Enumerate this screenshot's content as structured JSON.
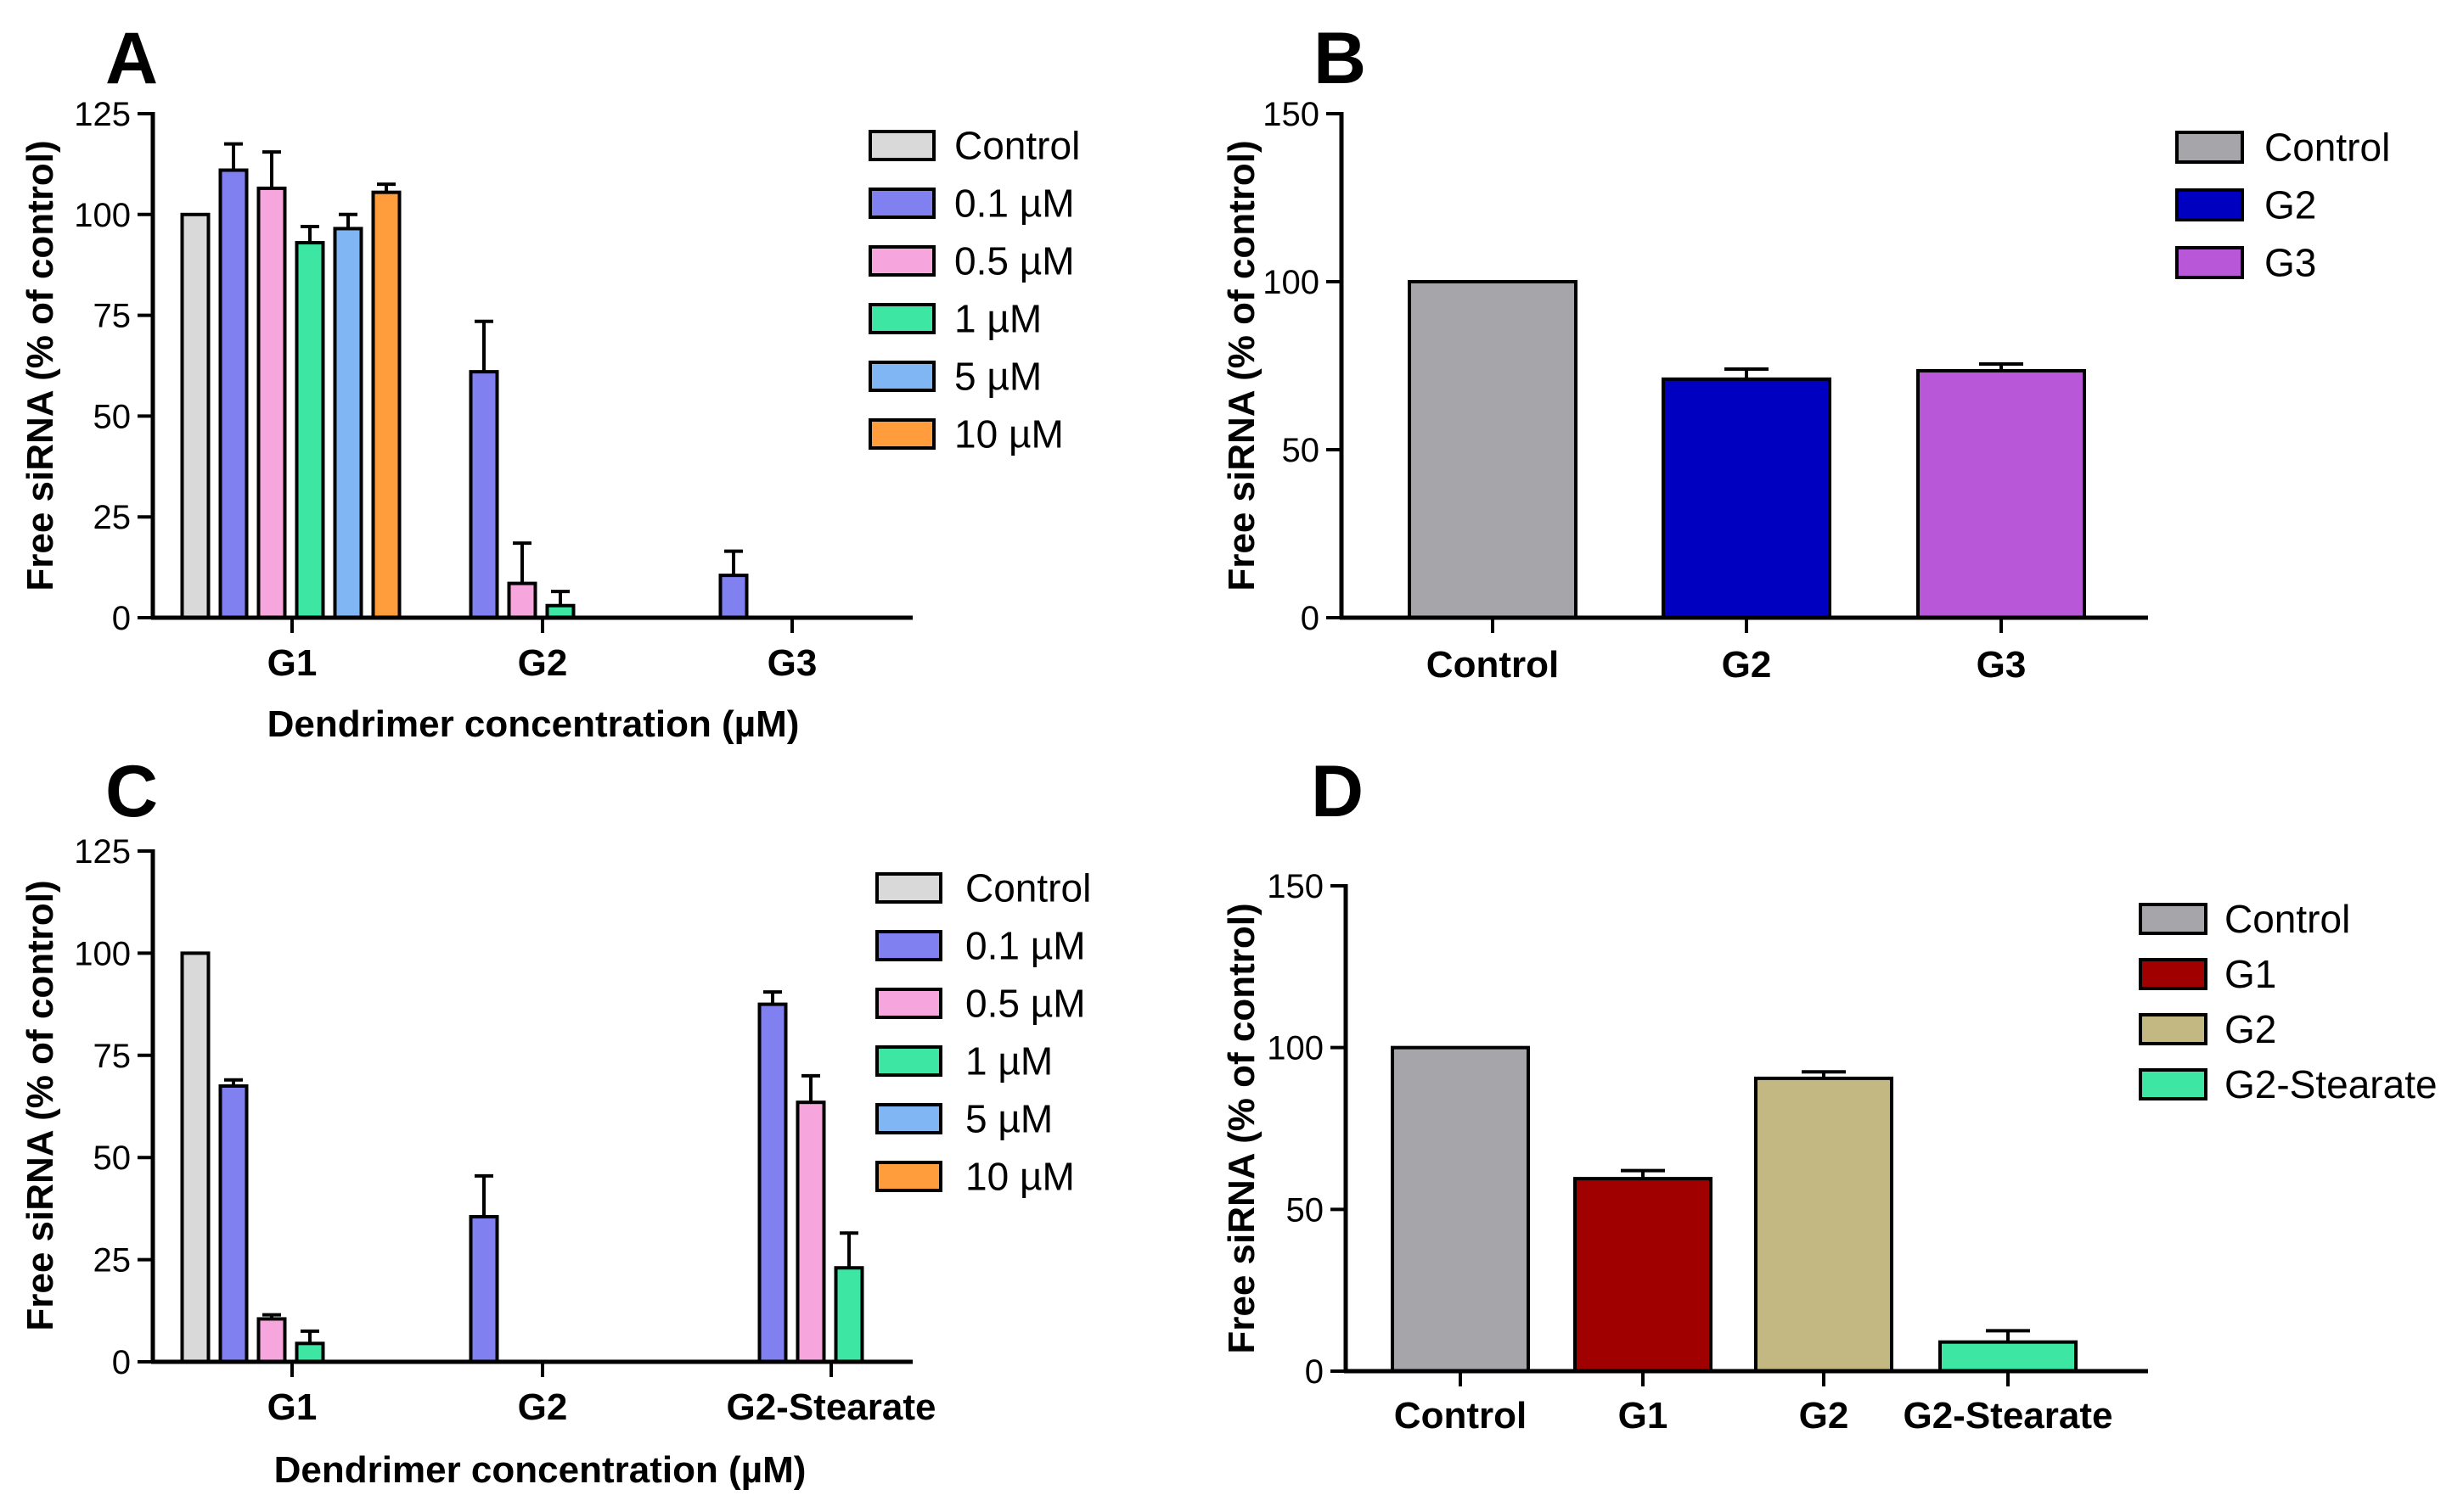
{
  "chart_data": [
    {
      "id": "A",
      "panel_label": "A",
      "type": "bar",
      "ylabel": "Free siRNA (% of control)",
      "xlabel": "Dendrimer concentration (µM)",
      "ylim": [
        0,
        125
      ],
      "yticks": [
        0,
        25,
        50,
        75,
        100,
        125
      ],
      "ytick_labels": [
        "0",
        "25",
        "50",
        "75",
        "100",
        "125"
      ],
      "categories": [
        "G1",
        "G2",
        "G3"
      ],
      "legend": [
        "Control",
        "0.1 µM",
        "0.5 µM",
        "1 µM",
        "5 µM",
        "10 µM"
      ],
      "series": [
        {
          "name": "Control",
          "color": "#d9d9d9",
          "values": [
            100,
            0,
            0
          ],
          "errors": [
            0,
            0,
            0
          ]
        },
        {
          "name": "0.1 µM",
          "color": "#8080f0",
          "values": [
            111,
            61,
            10.5
          ],
          "errors": [
            6.5,
            12.5,
            6
          ]
        },
        {
          "name": "0.5 µM",
          "color": "#f6a6dc",
          "values": [
            106.5,
            8.5,
            0
          ],
          "errors": [
            9,
            10,
            0
          ]
        },
        {
          "name": "1 µM",
          "color": "#3ee6a4",
          "values": [
            93,
            3,
            0
          ],
          "errors": [
            4,
            3.5,
            0
          ]
        },
        {
          "name": "5 µM",
          "color": "#80b6f4",
          "values": [
            96.5,
            0,
            0
          ],
          "errors": [
            3.5,
            0,
            0
          ]
        },
        {
          "name": "10 µM",
          "color": "#ff9d3c",
          "values": [
            105.5,
            0,
            0
          ],
          "errors": [
            2,
            0,
            0
          ]
        }
      ]
    },
    {
      "id": "B",
      "panel_label": "B",
      "type": "bar",
      "ylabel": "Free siRNA (% of control)",
      "xlabel": "",
      "ylim": [
        0,
        150
      ],
      "yticks": [
        0,
        50,
        100,
        150
      ],
      "ytick_labels": [
        "0",
        "50",
        "100",
        "150"
      ],
      "categories": [
        "Control",
        "G2",
        "G3"
      ],
      "legend": [
        "Control",
        "G2",
        "G3"
      ],
      "colors": [
        "#a6a6aa",
        "#0000c0",
        "#b858d8"
      ],
      "values": [
        100,
        71,
        73.5
      ],
      "errors": [
        0,
        3,
        2
      ]
    },
    {
      "id": "C",
      "panel_label": "C",
      "type": "bar",
      "ylabel": "Free siRNA (% of control)",
      "xlabel": "Dendrimer concentration (µM)",
      "ylim": [
        0,
        125
      ],
      "yticks": [
        0,
        25,
        50,
        75,
        100,
        125
      ],
      "ytick_labels": [
        "0",
        "25",
        "50",
        "75",
        "100",
        "125"
      ],
      "categories": [
        "G1",
        "G2",
        "G2-Stearate"
      ],
      "legend": [
        "Control",
        "0.1 µM",
        "0.5 µM",
        "1 µM",
        "5 µM",
        "10 µM"
      ],
      "series": [
        {
          "name": "Control",
          "color": "#d9d9d9",
          "values": [
            100,
            0,
            0
          ],
          "errors": [
            0,
            0,
            0
          ]
        },
        {
          "name": "0.1 µM",
          "color": "#8080f0",
          "values": [
            67.5,
            35.5,
            87.5
          ],
          "errors": [
            1.5,
            10,
            3
          ]
        },
        {
          "name": "0.5 µM",
          "color": "#f6a6dc",
          "values": [
            10.5,
            0,
            63.5
          ],
          "errors": [
            1,
            0,
            6.5
          ]
        },
        {
          "name": "1 µM",
          "color": "#3ee6a4",
          "values": [
            4.5,
            0,
            23
          ],
          "errors": [
            3,
            0,
            8.5
          ]
        },
        {
          "name": "5 µM",
          "color": "#80b6f4",
          "values": [
            0,
            0,
            0
          ],
          "errors": [
            0,
            0,
            0
          ]
        },
        {
          "name": "10 µM",
          "color": "#ff9d3c",
          "values": [
            0,
            0,
            0
          ],
          "errors": [
            0,
            0,
            0
          ]
        }
      ]
    },
    {
      "id": "D",
      "panel_label": "D",
      "type": "bar",
      "ylabel": "Free siRNA (% of control)",
      "xlabel": "",
      "ylim": [
        0,
        150
      ],
      "yticks": [
        0,
        50,
        100,
        150
      ],
      "ytick_labels": [
        "0",
        "50",
        "100",
        "150"
      ],
      "categories": [
        "Control",
        "G1",
        "G2",
        "G2-Stearate"
      ],
      "legend": [
        "Control",
        "G1",
        "G2",
        "G2-Stearate"
      ],
      "colors": [
        "#a6a6aa",
        "#a00000",
        "#c4b882",
        "#3ee6a4"
      ],
      "values": [
        100,
        59.5,
        90.5,
        9
      ],
      "errors": [
        0,
        2.5,
        2,
        3.5
      ]
    }
  ]
}
